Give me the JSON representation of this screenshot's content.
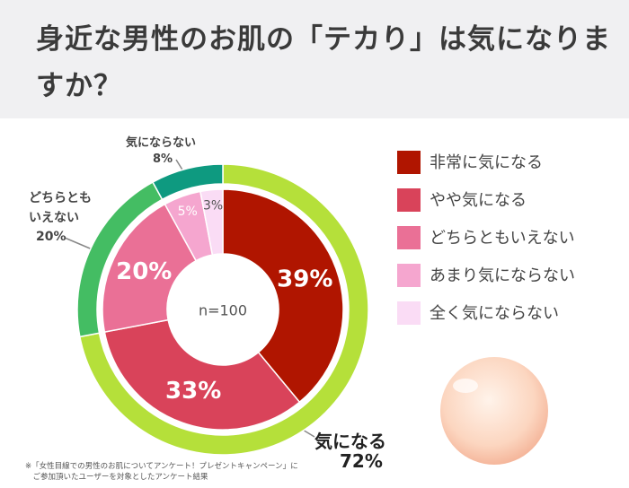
{
  "chart_data": {
    "type": "donut",
    "title": "身近な男性のお肌の「テカり」は気になりますか？",
    "center_label": "n=100",
    "note": "※「女性目線での男性のお肌についてアンケート！プレゼントキャンペーン」に\n　ご参加頂いたユーザーを対象としたアンケート結果",
    "categories": [
      "非常に気になる",
      "やや気になる",
      "どちらともいえない",
      "あまり気にならない",
      "全く気にならない"
    ],
    "values": [
      39,
      33,
      20,
      5,
      3
    ],
    "value_labels": [
      "39%",
      "33%",
      "20%",
      "5%",
      "3%"
    ],
    "colors": [
      "#b01500",
      "#d9435a",
      "#ea7096",
      "#f5a6cf",
      "#fadcf5"
    ],
    "outer": {
      "categories": [
        "気になる",
        "どちらとも\nいえない",
        "気にならない"
      ],
      "values": [
        72,
        20,
        8
      ],
      "value_labels": [
        "72%",
        "20%",
        "8%"
      ],
      "colors": [
        "#b5e03a",
        "#44bd63",
        "#0e9a80"
      ]
    }
  }
}
